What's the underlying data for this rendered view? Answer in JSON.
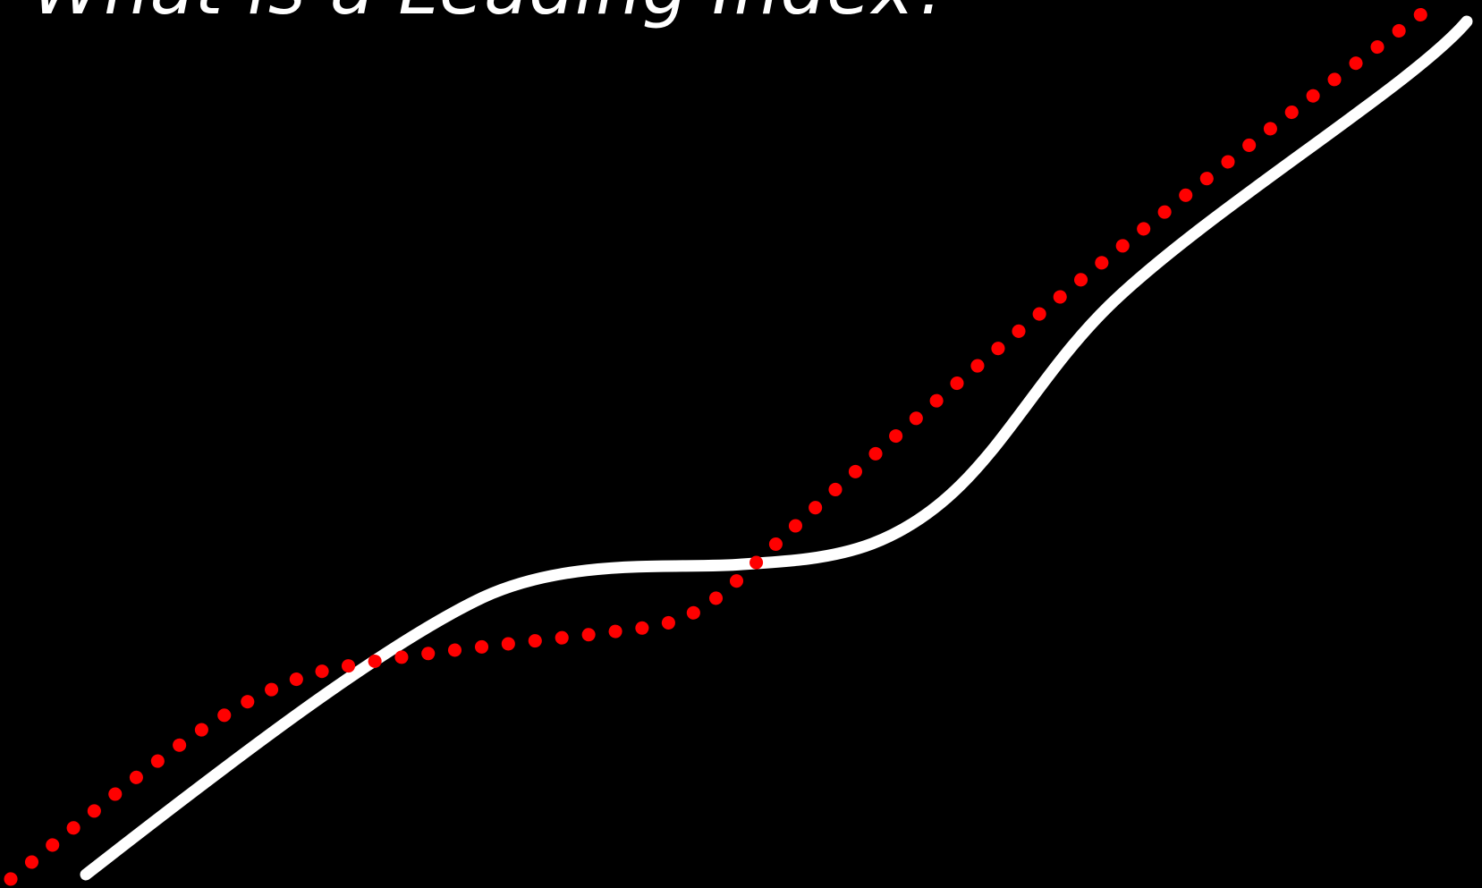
{
  "slide": {
    "title": "What is a Leading Index?",
    "background": "#000000"
  },
  "diagram": {
    "series": [
      {
        "style": "solid",
        "color": "#ffffff"
      },
      {
        "style": "dotted",
        "color": "#ff0000"
      }
    ]
  }
}
